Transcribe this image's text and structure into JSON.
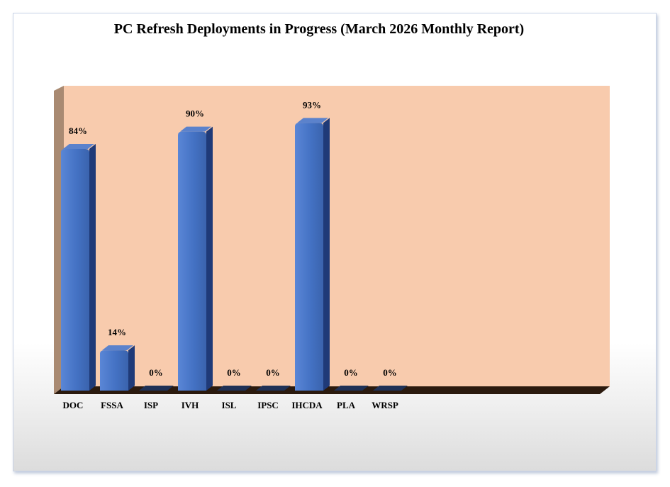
{
  "chart_data": {
    "type": "bar",
    "title": "PC Refresh Deployments in Progress (March 2026 Monthly Report)",
    "categories": [
      "DOC",
      "FSSA",
      "ISP",
      "IVH",
      "ISL",
      "IPSC",
      "IHCDA",
      "PLA",
      "WRSP"
    ],
    "values": [
      84,
      14,
      0,
      90,
      0,
      0,
      93,
      0,
      0
    ],
    "data_labels": [
      "84%",
      "14%",
      "0%",
      "90%",
      "0%",
      "0%",
      "93%",
      "0%",
      "0%"
    ],
    "ylim": [
      0,
      100
    ],
    "grid": false,
    "legend": "none",
    "style": "3d-cylinder",
    "colors": {
      "bar": "#4472c4",
      "bar_top": "#5b82cc",
      "bar_side": "#1f3a78",
      "plot_back_wall": "#f8cbad",
      "plot_side_wall": "#a98a72",
      "floor": "#2b1a0e"
    }
  }
}
